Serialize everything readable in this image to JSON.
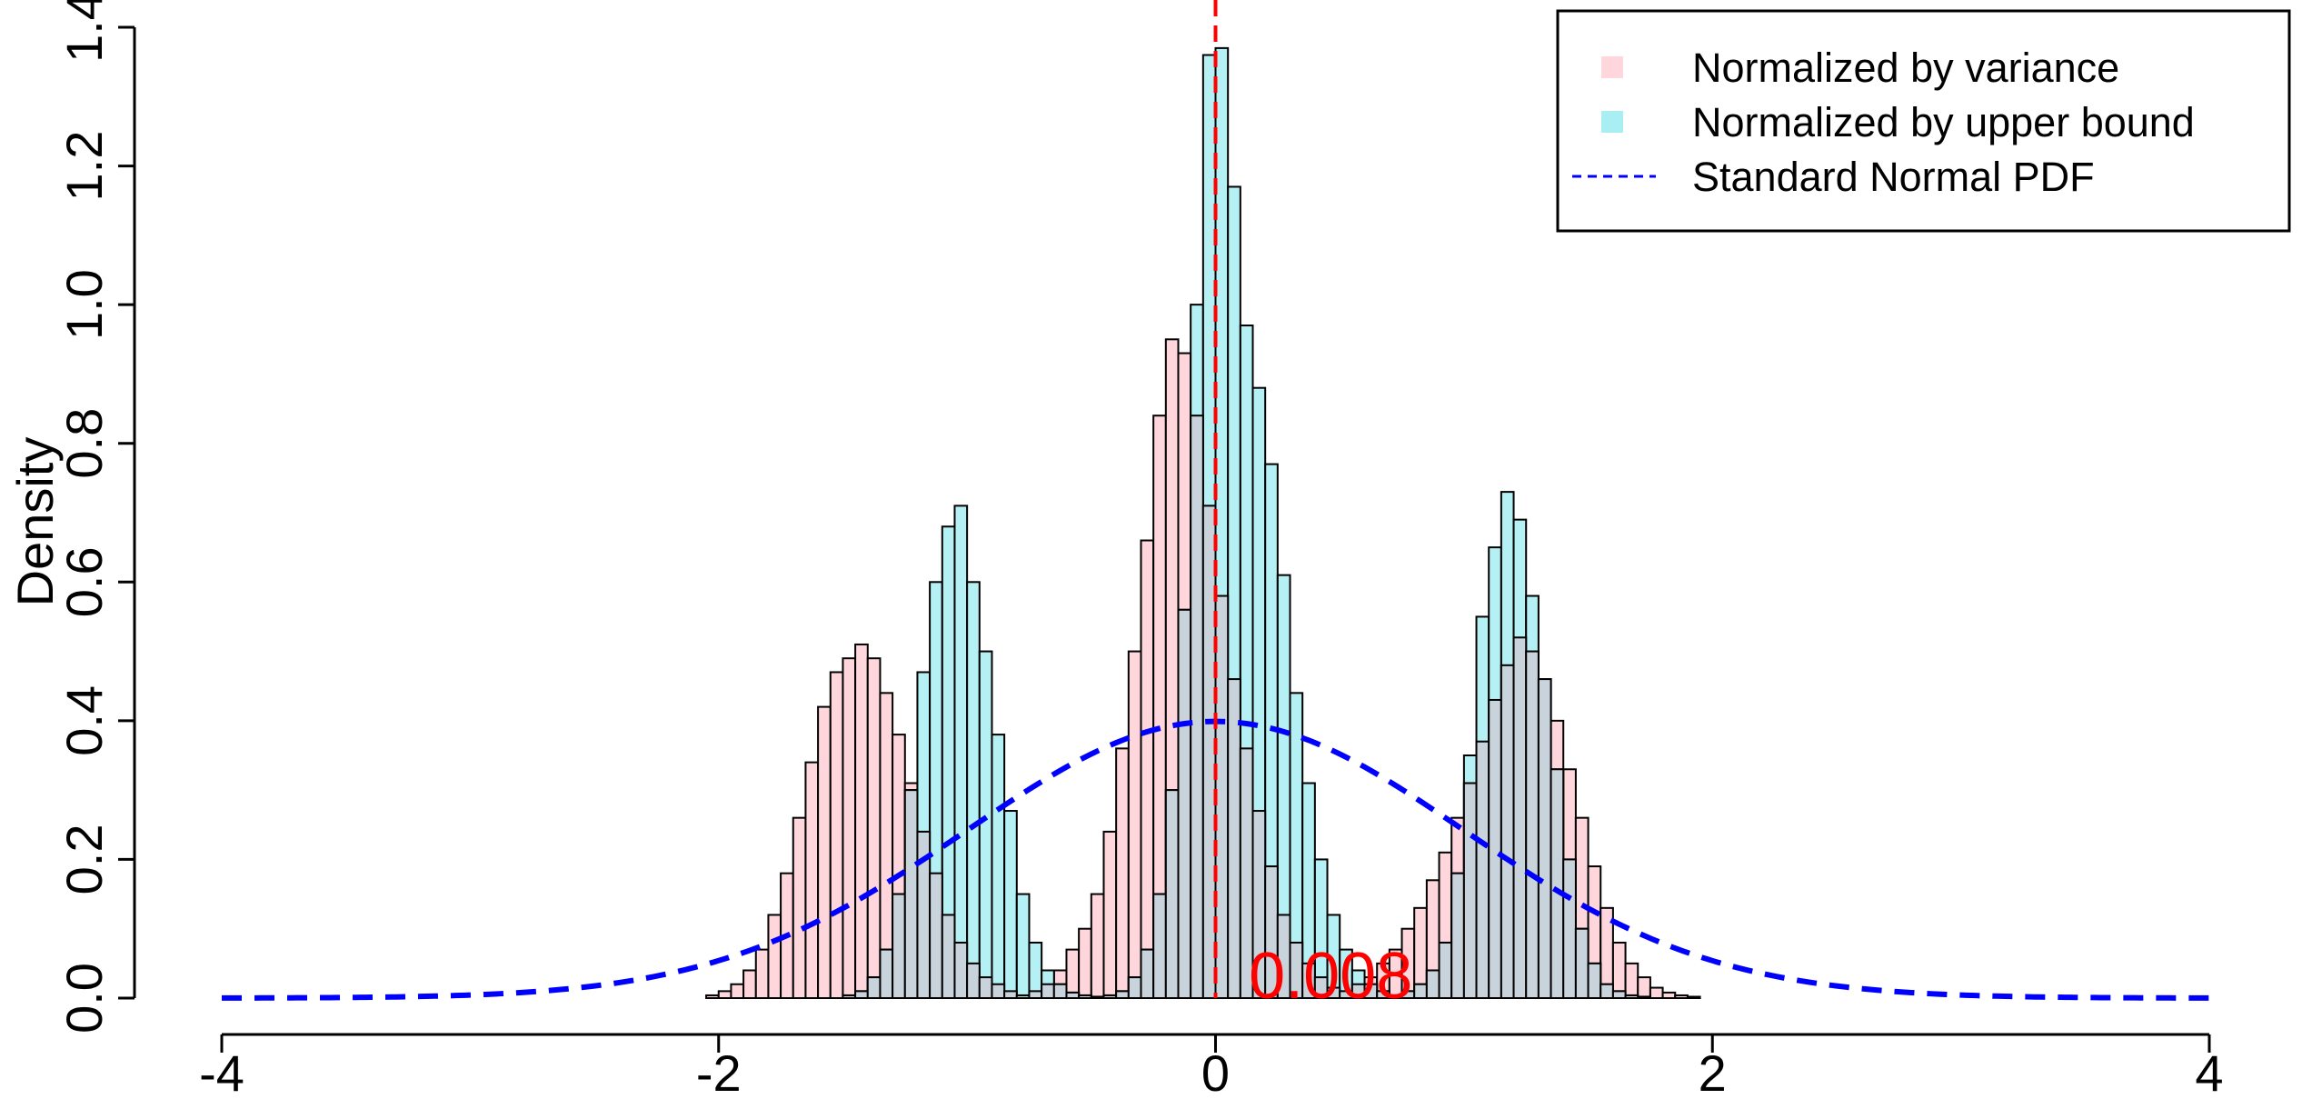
{
  "chart_data": {
    "type": "histogram",
    "title": "",
    "xlabel": "",
    "ylabel": "Density",
    "xlim": [
      -4,
      4
    ],
    "ylim": [
      0,
      1.4
    ],
    "x_ticks": [
      "-4",
      "-2",
      "0",
      "2",
      "4"
    ],
    "y_ticks": [
      "0.0",
      "0.2",
      "0.4",
      "0.6",
      "0.8",
      "1.0",
      "1.2",
      "1.4"
    ],
    "bin_width": 0.05,
    "series": [
      {
        "name": "Normalized by variance",
        "color": "#FFD6DC",
        "type": "histogram",
        "bins_start": -2.1,
        "values": [
          0.0,
          0.004,
          0.01,
          0.02,
          0.04,
          0.07,
          0.12,
          0.18,
          0.26,
          0.34,
          0.42,
          0.47,
          0.49,
          0.51,
          0.49,
          0.44,
          0.38,
          0.31,
          0.24,
          0.18,
          0.12,
          0.08,
          0.05,
          0.03,
          0.02,
          0.01,
          0.004,
          0.01,
          0.02,
          0.04,
          0.07,
          0.1,
          0.15,
          0.24,
          0.36,
          0.5,
          0.66,
          0.84,
          0.95,
          0.93,
          0.84,
          0.71,
          0.58,
          0.46,
          0.36,
          0.27,
          0.19,
          0.12,
          0.08,
          0.05,
          0.03,
          0.015,
          0.01,
          0.02,
          0.03,
          0.05,
          0.07,
          0.1,
          0.13,
          0.17,
          0.21,
          0.26,
          0.31,
          0.37,
          0.43,
          0.48,
          0.52,
          0.5,
          0.46,
          0.4,
          0.33,
          0.26,
          0.19,
          0.13,
          0.08,
          0.05,
          0.03,
          0.015,
          0.008,
          0.004,
          0.002,
          0.0,
          0.0,
          0.0,
          0.0,
          0.0,
          0.0
        ]
      },
      {
        "name": "Normalized by upper bound",
        "color": "#A8EEF2",
        "type": "histogram",
        "bins_start": -2.1,
        "values": [
          0,
          0,
          0,
          0,
          0,
          0,
          0,
          0,
          0,
          0,
          0,
          0,
          0.004,
          0.01,
          0.03,
          0.07,
          0.15,
          0.3,
          0.47,
          0.6,
          0.68,
          0.71,
          0.6,
          0.5,
          0.38,
          0.27,
          0.15,
          0.08,
          0.04,
          0.02,
          0.008,
          0.004,
          0.002,
          0.004,
          0.01,
          0.03,
          0.07,
          0.15,
          0.3,
          0.56,
          1.0,
          1.36,
          1.37,
          1.17,
          0.97,
          0.88,
          0.77,
          0.61,
          0.44,
          0.31,
          0.2,
          0.12,
          0.07,
          0.04,
          0.02,
          0.01,
          0.004,
          0.01,
          0.02,
          0.04,
          0.08,
          0.18,
          0.35,
          0.55,
          0.65,
          0.73,
          0.69,
          0.58,
          0.46,
          0.33,
          0.2,
          0.1,
          0.05,
          0.02,
          0.01,
          0.004,
          0.002,
          0,
          0,
          0,
          0,
          0,
          0,
          0,
          0,
          0,
          0,
          0
        ]
      },
      {
        "name": "Standard Normal PDF",
        "color": "#0000FF",
        "type": "line",
        "style": "dashed",
        "function": "standard_normal_pdf",
        "x_range": [
          -4,
          4
        ]
      }
    ],
    "vline": {
      "x": 0,
      "color": "#FF0000",
      "style": "dashed"
    },
    "annotation": {
      "text": "0.008",
      "x": 0.5,
      "y": 0.0,
      "color": "#FF0000"
    },
    "legend": {
      "position": "top-right",
      "entries": [
        {
          "label": "Normalized by variance",
          "color": "#FFD6DC",
          "symbol": "square"
        },
        {
          "label": "Normalized by upper bound",
          "color": "#A8EEF2",
          "symbol": "square"
        },
        {
          "label": "Standard Normal PDF",
          "color": "#0000FF",
          "symbol": "dashed-line"
        }
      ]
    },
    "grid": false
  }
}
